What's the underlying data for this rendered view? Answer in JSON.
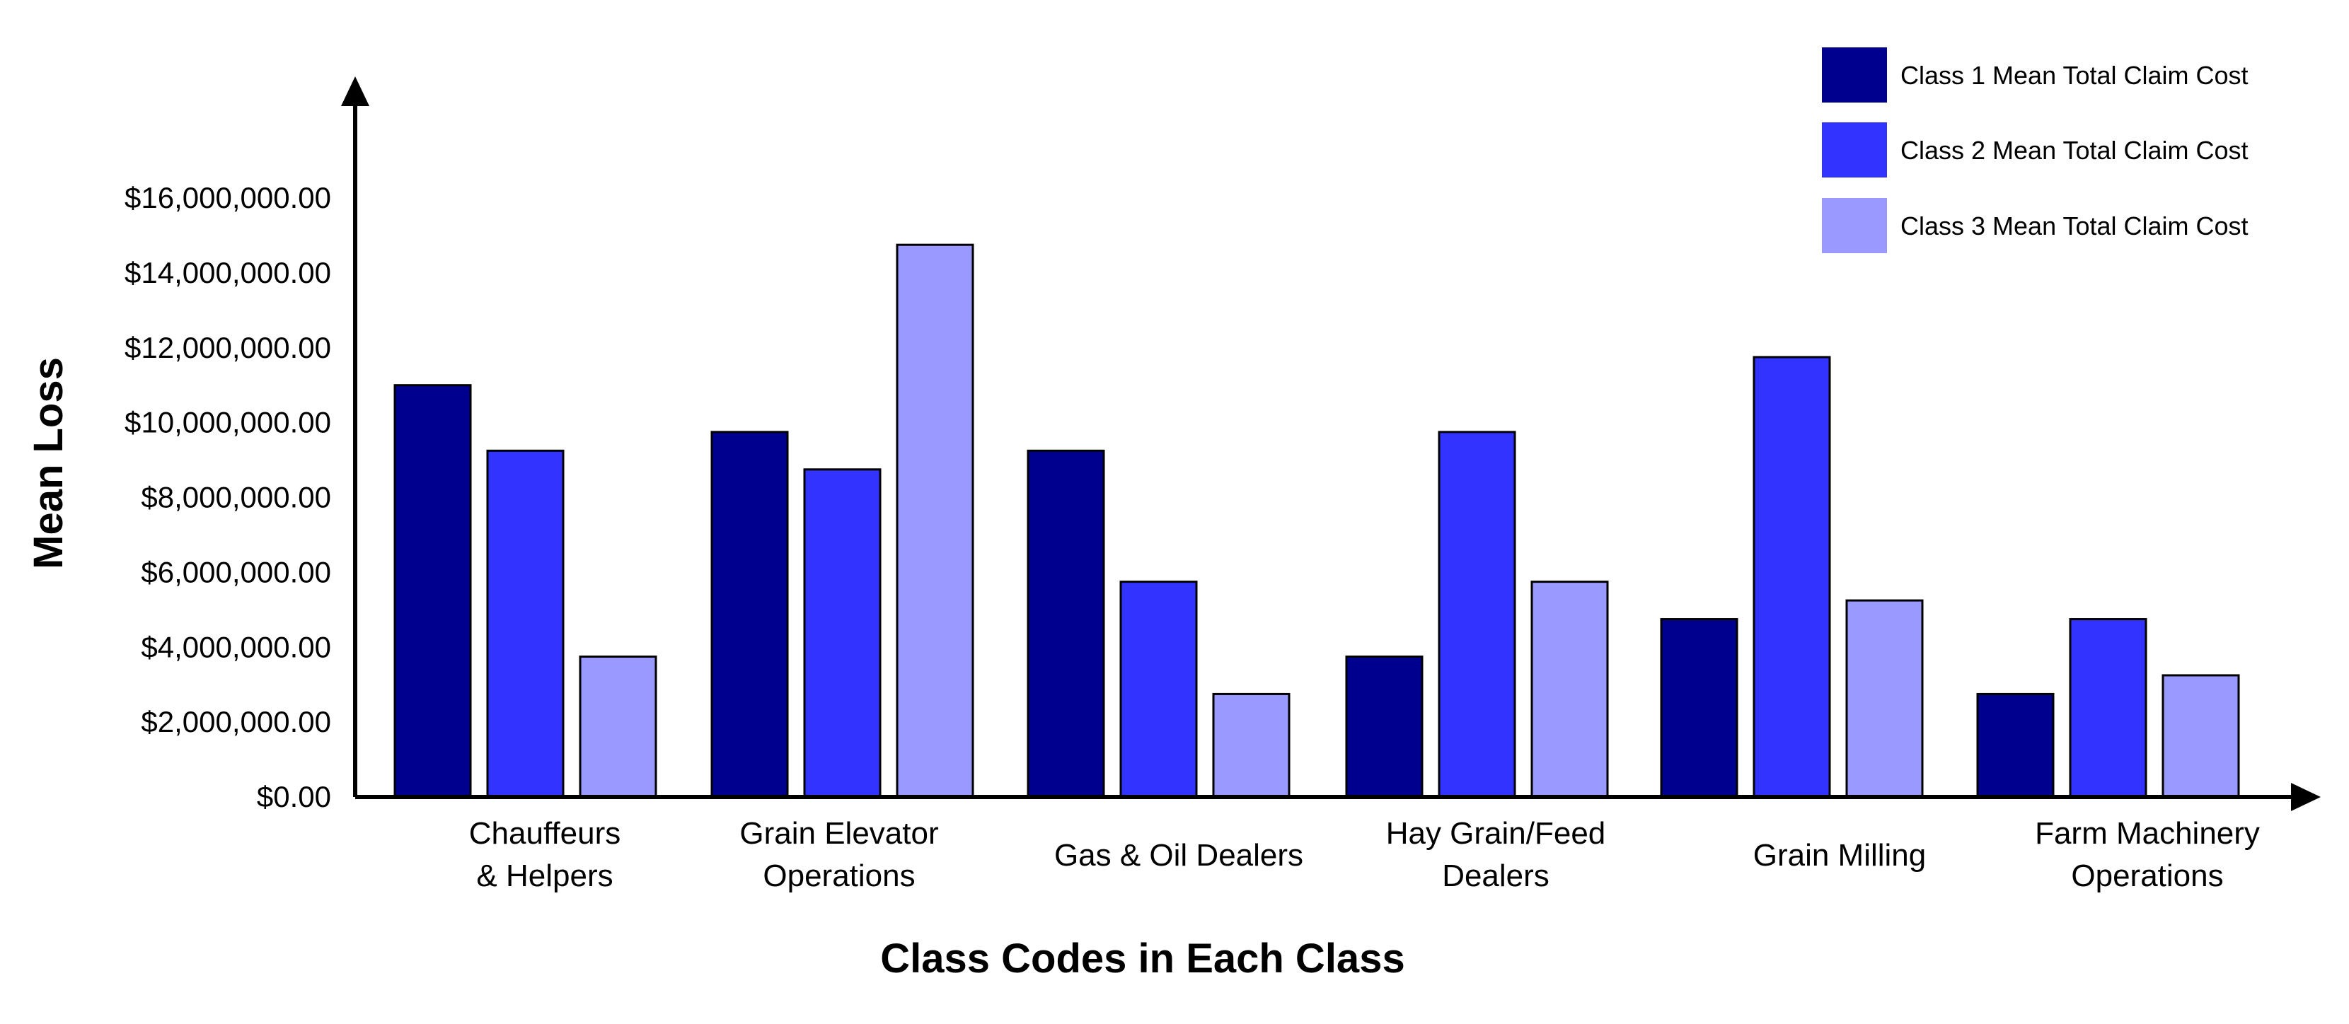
{
  "chart_data": {
    "type": "bar",
    "title": "",
    "xlabel": "Class Codes in Each Class",
    "ylabel": "Mean Loss",
    "ylim": [
      0,
      16000000
    ],
    "yticks": [
      "$0.00",
      "$2,000,000.00",
      "$4,000,000.00",
      "$6,000,000.00",
      "$8,000,000.00",
      "$10,000,000.00",
      "$12,000,000.00",
      "$14,000,000.00",
      "$16,000,000.00"
    ],
    "ytick_values": [
      0,
      2000000,
      4000000,
      6000000,
      8000000,
      10000000,
      12000000,
      14000000,
      16000000
    ],
    "categories": [
      [
        "Chauffeurs",
        "& Helpers"
      ],
      [
        "Grain Elevator",
        "Operations"
      ],
      [
        "Gas & Oil Dealers"
      ],
      [
        "Hay Grain/Feed",
        "Dealers"
      ],
      [
        "Grain Milling"
      ],
      [
        "Farm Machinery",
        "Operations"
      ]
    ],
    "series": [
      {
        "name": "Class 1 Mean Total Claim Cost",
        "color": "#00008f",
        "values": [
          11000000,
          9750000,
          9250000,
          3750000,
          4750000,
          2750000
        ]
      },
      {
        "name": "Class 2 Mean Total Claim Cost",
        "color": "#3333ff",
        "values": [
          9250000,
          8750000,
          5750000,
          9750000,
          11750000,
          4750000
        ]
      },
      {
        "name": "Class 3 Mean Total Claim Cost",
        "color": "#9999ff",
        "values": [
          3750000,
          14750000,
          2750000,
          5750000,
          5250000,
          3250000
        ]
      }
    ],
    "grid": false,
    "legend_position": "top-right"
  }
}
